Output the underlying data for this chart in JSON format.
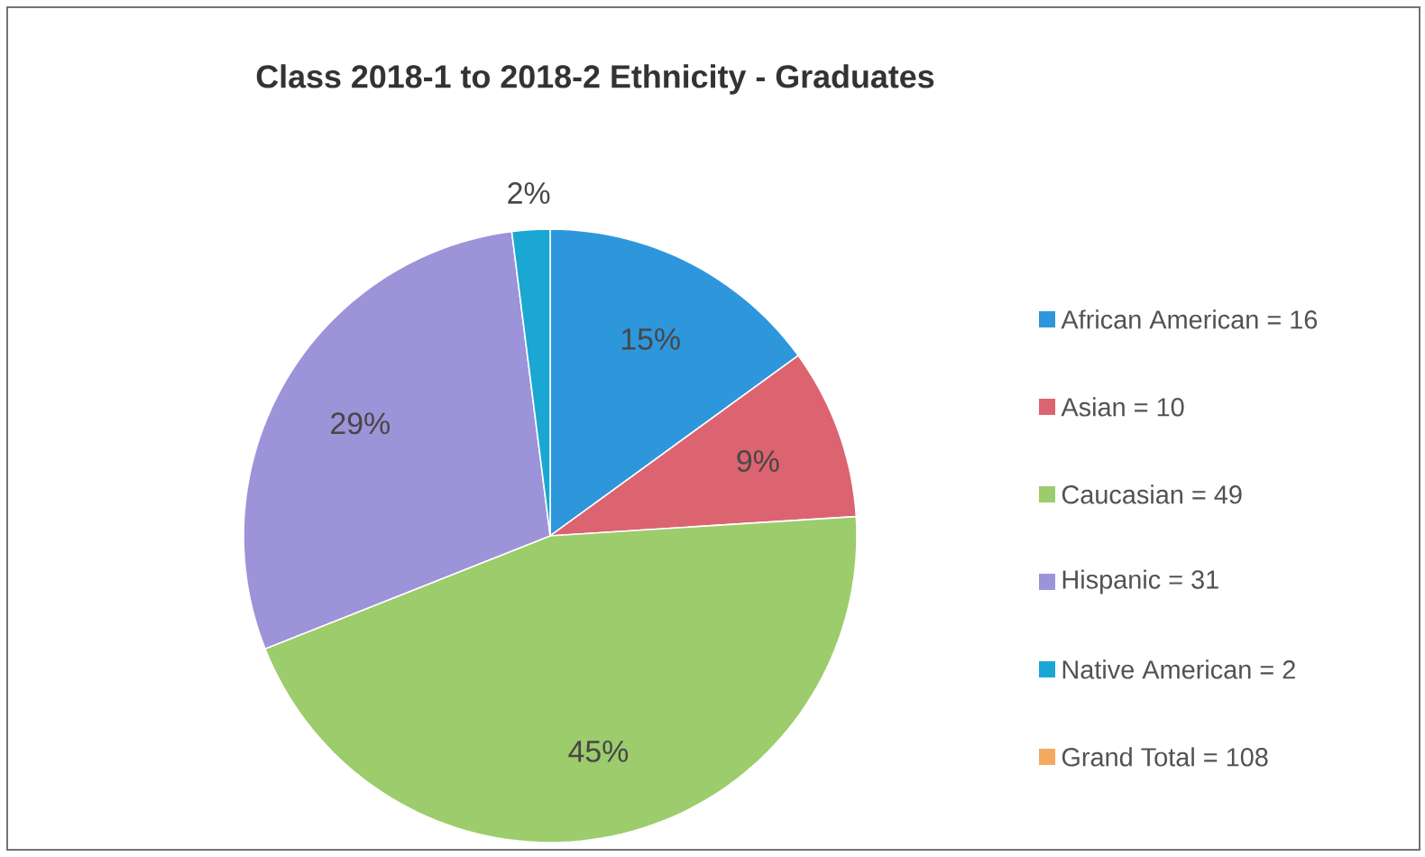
{
  "chart_data": {
    "type": "pie",
    "title": "Class 2018-1 to 2018-2 Ethnicity - Graduates",
    "categories": [
      "African American = 16",
      "Asian = 10",
      "Caucasian = 49",
      "Hispanic = 31",
      "Native American = 2",
      "Grand Total = 108"
    ],
    "values": [
      15,
      9,
      45,
      29,
      2,
      0
    ],
    "value_labels": [
      "15%",
      "9%",
      "45%",
      "29%",
      "2%",
      null
    ],
    "colors": [
      "#2e97dc",
      "#dc6470",
      "#9ccc6c",
      "#9c93d8",
      "#1aa7d4",
      "#f5a860"
    ],
    "legend": "right"
  }
}
